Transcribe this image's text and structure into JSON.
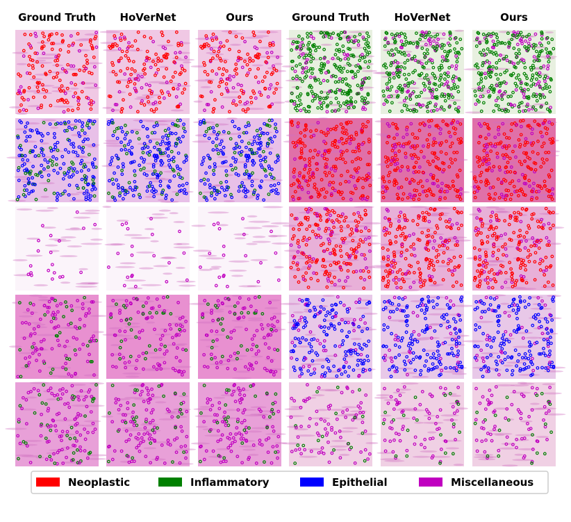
{
  "figure": {
    "column_headers": [
      "Ground Truth",
      "HoVerNet",
      "Ours",
      "Ground Truth",
      "HoVerNet",
      "Ours"
    ],
    "legend": [
      {
        "name": "Neoplastic",
        "color": "#ff0000"
      },
      {
        "name": "Inflammatory",
        "color": "#008000"
      },
      {
        "name": "Epithelial",
        "color": "#0000ff"
      },
      {
        "name": "Miscellaneous",
        "color": "#c000c0"
      }
    ]
  }
}
